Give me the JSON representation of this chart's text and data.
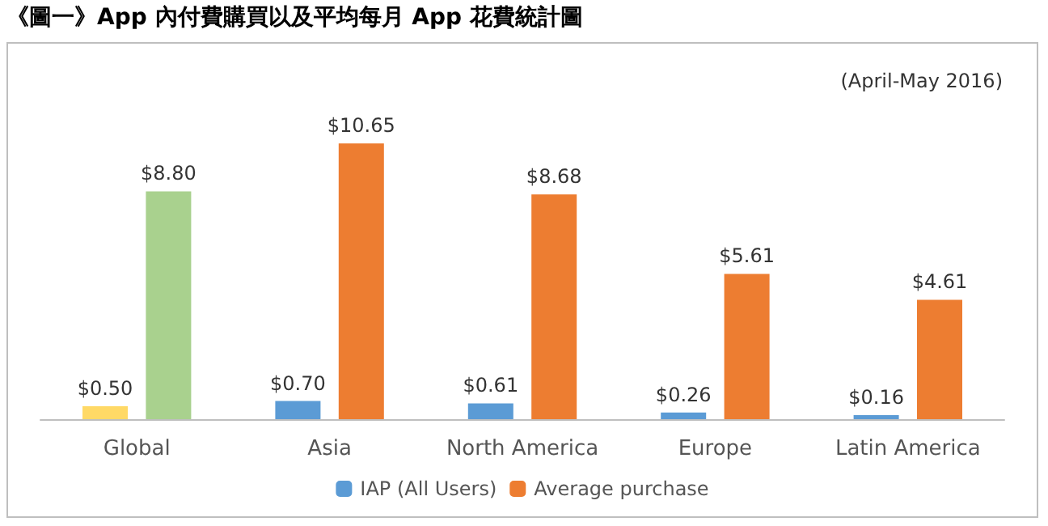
{
  "chart_data": {
    "type": "bar",
    "title": "《圖一》App 內付費購買以及平均每月 App 花費統計圖",
    "categories": [
      "Global",
      "Asia",
      "North America",
      "Europe",
      "Latin America"
    ],
    "series": [
      {
        "name": "IAP (All Users)",
        "color": "#5b9bd5",
        "colors": [
          "#ffd966",
          "#5b9bd5",
          "#5b9bd5",
          "#5b9bd5",
          "#5b9bd5"
        ],
        "values": [
          0.5,
          0.7,
          0.61,
          0.26,
          0.16
        ],
        "value_labels": [
          "$0.50",
          "$0.70",
          "$0.61",
          "$0.26",
          "$0.16"
        ]
      },
      {
        "name": "Average purchase",
        "color": "#ed7d31",
        "colors": [
          "#a9d18e",
          "#ed7d31",
          "#ed7d31",
          "#ed7d31",
          "#ed7d31"
        ],
        "values": [
          8.8,
          10.65,
          8.68,
          5.61,
          4.61
        ],
        "value_labels": [
          "$8.80",
          "$10.65",
          "$8.68",
          "$5.61",
          "$4.61"
        ]
      }
    ],
    "annotations": [
      "(April-May 2016)"
    ],
    "tick_labels": "x",
    "legend": "bottom"
  }
}
